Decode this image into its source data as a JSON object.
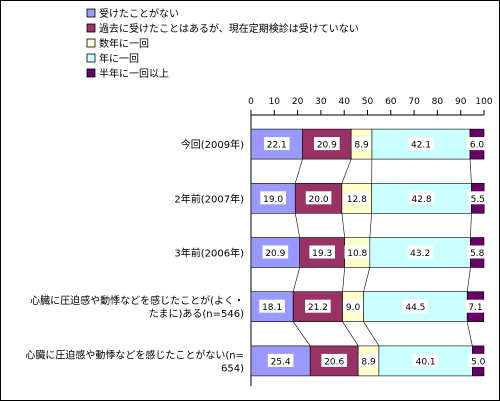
{
  "chart_data": {
    "type": "bar",
    "stacked": true,
    "percent": true,
    "orientation": "horizontal",
    "title": "",
    "xlabel": "",
    "ylabel": "",
    "xlim": [
      0,
      100
    ],
    "xticks": [
      "0",
      "10",
      "20",
      "30",
      "40",
      "50",
      "60",
      "70",
      "80",
      "90",
      "100"
    ],
    "legend_position": "top-left",
    "grid": false,
    "categories": [
      [
        "今回(2009年)"
      ],
      [
        "2年前(2007年)"
      ],
      [
        "3年前(2006年)"
      ],
      [
        "心臓に圧迫感や動悸などを感じたことが(よく・",
        "たまに)ある(n=546)"
      ],
      [
        "心臓に圧迫感や動悸などを感じたことがない(n=",
        "654)"
      ]
    ],
    "series": [
      {
        "name": "受けたことがない",
        "color": "#9999FF",
        "values": [
          22.1,
          19.0,
          20.9,
          18.1,
          25.4
        ]
      },
      {
        "name": "過去に受けたことはあるが、現在定期検診は受けていない",
        "color": "#993366",
        "values": [
          20.9,
          20.0,
          19.3,
          21.2,
          20.6
        ]
      },
      {
        "name": "数年に一回",
        "color": "#FFFFCC",
        "values": [
          8.9,
          12.8,
          10.8,
          9.0,
          8.9
        ]
      },
      {
        "name": "年に一回",
        "color": "#CCFFFF",
        "values": [
          42.1,
          42.8,
          43.2,
          44.5,
          40.1
        ]
      },
      {
        "name": "半年に一回以上",
        "color": "#660066",
        "values": [
          6.0,
          5.5,
          5.8,
          7.1,
          5.0
        ]
      }
    ]
  }
}
